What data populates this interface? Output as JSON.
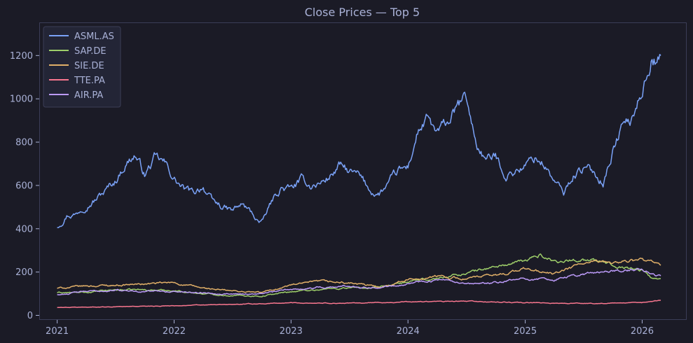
{
  "chart_data": {
    "type": "line",
    "title": "Close Prices — Top 5",
    "xlabel": "",
    "ylabel": "",
    "x_ticks": [
      "2021",
      "2022",
      "2023",
      "2024",
      "2025",
      "2026"
    ],
    "y_ticks": [
      0,
      200,
      400,
      600,
      800,
      1000,
      1200
    ],
    "xlim": [
      "2020-11-06",
      "2026-05-20"
    ],
    "ylim": [
      -21,
      1353
    ],
    "grid": false,
    "legend_position": "top-left",
    "series": [
      {
        "name": "ASML.AS",
        "color": "#7aa2f7",
        "x": [
          "2021-01-01",
          "2021-02-01",
          "2021-03-01",
          "2021-04-01",
          "2021-05-01",
          "2021-06-01",
          "2021-07-01",
          "2021-08-01",
          "2021-09-01",
          "2021-10-01",
          "2021-11-01",
          "2021-12-01",
          "2022-01-01",
          "2022-02-01",
          "2022-03-01",
          "2022-04-01",
          "2022-05-01",
          "2022-06-01",
          "2022-07-01",
          "2022-08-01",
          "2022-09-01",
          "2022-10-01",
          "2022-11-01",
          "2022-12-01",
          "2023-01-01",
          "2023-02-01",
          "2023-03-01",
          "2023-04-01",
          "2023-05-01",
          "2023-06-01",
          "2023-07-01",
          "2023-08-01",
          "2023-09-01",
          "2023-10-01",
          "2023-11-01",
          "2023-12-01",
          "2024-01-01",
          "2024-02-01",
          "2024-03-01",
          "2024-04-01",
          "2024-05-01",
          "2024-06-01",
          "2024-07-01",
          "2024-08-01",
          "2024-09-01",
          "2024-10-01",
          "2024-11-01",
          "2024-12-01",
          "2025-01-01",
          "2025-02-01",
          "2025-03-01",
          "2025-04-01",
          "2025-05-01",
          "2025-06-01",
          "2025-07-01",
          "2025-08-01",
          "2025-09-01",
          "2025-10-01",
          "2025-11-01",
          "2025-12-01",
          "2026-01-01",
          "2026-02-01",
          "2026-03-01"
        ],
        "values": [
          410,
          470,
          470,
          520,
          540,
          575,
          620,
          700,
          745,
          650,
          720,
          700,
          630,
          580,
          560,
          600,
          520,
          500,
          480,
          510,
          470,
          420,
          520,
          590,
          580,
          620,
          600,
          610,
          640,
          690,
          660,
          640,
          580,
          560,
          600,
          660,
          680,
          850,
          900,
          830,
          880,
          950,
          1000,
          790,
          720,
          730,
          650,
          670,
          690,
          730,
          700,
          620,
          560,
          650,
          680,
          660,
          620,
          760,
          880,
          900,
          1050,
          1200,
          1180
        ]
      },
      {
        "name": "SAP.DE",
        "color": "#9ece6a",
        "x": [
          "2021-01-01",
          "2021-04-01",
          "2021-07-01",
          "2021-10-01",
          "2022-01-01",
          "2022-04-01",
          "2022-07-01",
          "2022-10-01",
          "2023-01-01",
          "2023-04-01",
          "2023-07-01",
          "2023-10-01",
          "2024-01-01",
          "2024-04-01",
          "2024-07-01",
          "2024-10-01",
          "2025-01-01",
          "2025-02-15",
          "2025-04-01",
          "2025-07-01",
          "2025-10-01",
          "2026-01-01",
          "2026-02-01",
          "2026-03-01"
        ],
        "values": [
          105,
          105,
          118,
          118,
          115,
          100,
          92,
          90,
          110,
          120,
          128,
          125,
          155,
          170,
          195,
          225,
          250,
          280,
          250,
          260,
          235,
          210,
          170,
          170
        ]
      },
      {
        "name": "SIE.DE",
        "color": "#e0af68",
        "x": [
          "2021-01-01",
          "2021-04-01",
          "2021-07-01",
          "2021-10-01",
          "2022-01-01",
          "2022-04-01",
          "2022-07-01",
          "2022-10-01",
          "2023-01-01",
          "2023-04-01",
          "2023-07-01",
          "2023-10-01",
          "2024-01-01",
          "2024-04-01",
          "2024-07-01",
          "2024-10-01",
          "2025-01-01",
          "2025-04-01",
          "2025-07-01",
          "2025-10-01",
          "2026-01-01",
          "2026-02-01",
          "2026-03-01"
        ],
        "values": [
          125,
          135,
          140,
          145,
          150,
          125,
          112,
          105,
          140,
          155,
          150,
          130,
          165,
          180,
          170,
          185,
          215,
          190,
          240,
          245,
          255,
          240,
          225
        ]
      },
      {
        "name": "TTE.PA",
        "color": "#f7768e",
        "x": [
          "2021-01-01",
          "2021-07-01",
          "2022-01-01",
          "2022-07-01",
          "2023-01-01",
          "2023-07-01",
          "2024-01-01",
          "2024-07-01",
          "2025-01-01",
          "2025-07-01",
          "2026-01-01",
          "2026-03-01"
        ],
        "values": [
          36,
          40,
          45,
          50,
          58,
          56,
          62,
          65,
          58,
          55,
          58,
          72
        ]
      },
      {
        "name": "AIR.PA",
        "color": "#bb9af7",
        "x": [
          "2021-01-01",
          "2021-04-01",
          "2021-07-01",
          "2021-10-01",
          "2022-01-01",
          "2022-04-01",
          "2022-07-01",
          "2022-10-01",
          "2023-01-01",
          "2023-04-01",
          "2023-07-01",
          "2023-10-01",
          "2024-01-01",
          "2024-04-01",
          "2024-07-01",
          "2024-10-01",
          "2025-01-01",
          "2025-04-01",
          "2025-07-01",
          "2025-10-01",
          "2026-01-01",
          "2026-02-01",
          "2026-03-01"
        ],
        "values": [
          95,
          110,
          115,
          112,
          110,
          105,
          100,
          100,
          120,
          130,
          135,
          130,
          150,
          165,
          140,
          150,
          170,
          165,
          190,
          205,
          210,
          190,
          178
        ]
      }
    ]
  }
}
